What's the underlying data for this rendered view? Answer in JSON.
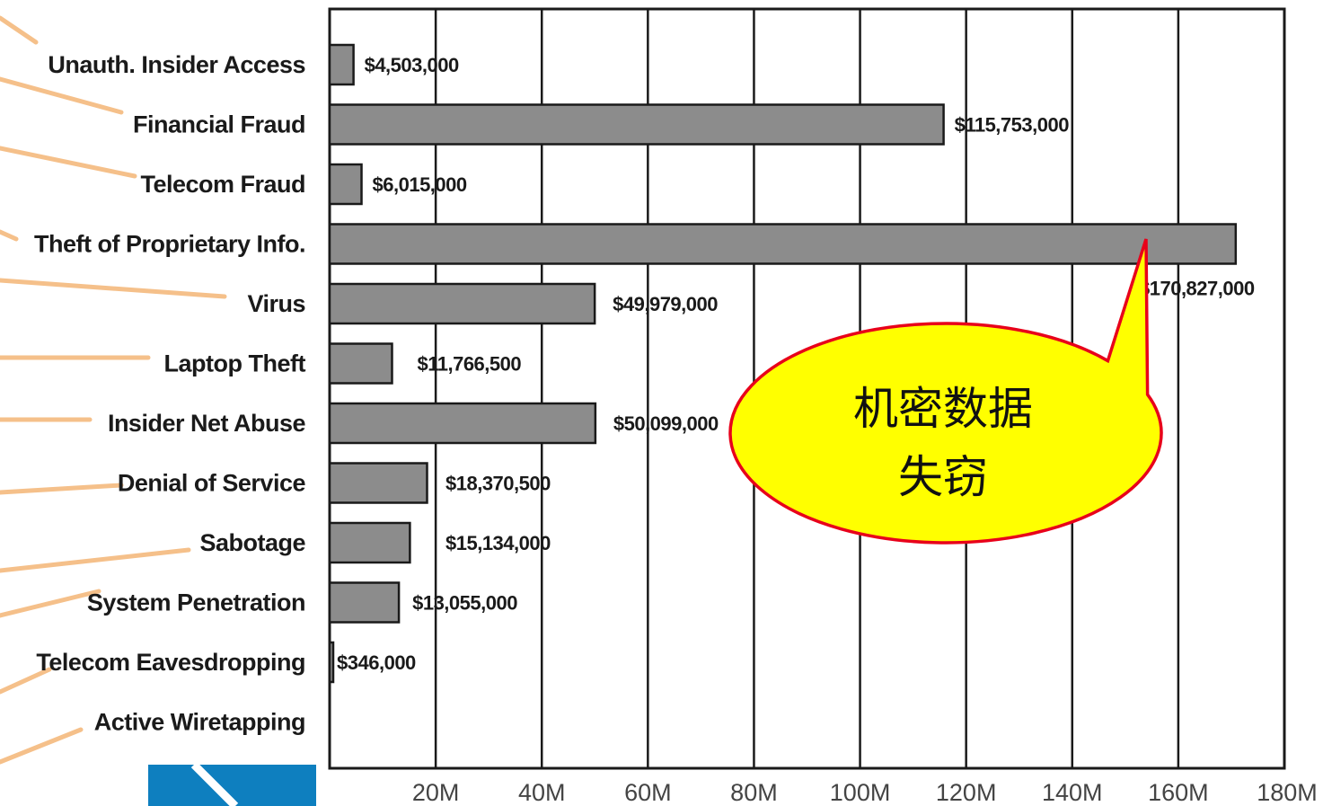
{
  "chart_data": {
    "type": "bar",
    "orientation": "horizontal",
    "categories": [
      "Unauth. Insider Access",
      "Financial Fraud",
      "Telecom Fraud",
      "Theft of Proprietary Info.",
      "Virus",
      "Laptop Theft",
      "Insider Net Abuse",
      "Denial of Service",
      "Sabotage",
      "System Penetration",
      "Telecom Eavesdropping",
      "Active Wiretapping"
    ],
    "values": [
      4503000,
      115753000,
      6015000,
      170827000,
      49979000,
      11766500,
      50099000,
      18370500,
      15134000,
      13055000,
      346000,
      0
    ],
    "data_labels": [
      "$4,503,000",
      "$115,753,000",
      "$6,015,000",
      "$170,827,000",
      "$49,979,000",
      "$11,766,500",
      "$50,099,000",
      "$18,370,500",
      "$15,134,000",
      "$13,055,000",
      "$346,000",
      ""
    ],
    "xlim": [
      0,
      180000000
    ],
    "x_ticks": [
      20000000,
      40000000,
      60000000,
      80000000,
      100000000,
      120000000,
      140000000,
      160000000,
      180000000
    ],
    "x_tick_labels": [
      "20M",
      "40M",
      "60M",
      "80M",
      "100M",
      "120M",
      "140M",
      "160M",
      "180M"
    ],
    "grid": true,
    "title": "",
    "xlabel": "",
    "ylabel": ""
  },
  "callout": {
    "line1": "机密数据",
    "line2": "失窃",
    "fill": "#ffff00",
    "stroke": "#e8001a"
  },
  "colors": {
    "bar": "#8c8c8c",
    "bar_stroke": "#1a1a1a",
    "grid": "#1a1a1a",
    "leader": "#f5c08a",
    "corner": "#0e7fbf"
  }
}
